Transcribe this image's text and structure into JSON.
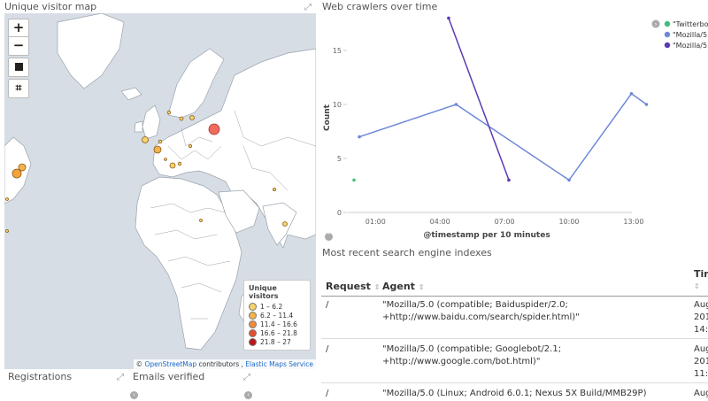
{
  "map_panel": {
    "title": "Unique visitor map",
    "zoom_in": "+",
    "zoom_out": "−",
    "legend": {
      "title": "Unique visitors",
      "items": [
        {
          "label": "1 – 6.2",
          "color": "#f7d26a"
        },
        {
          "label": "6.2 – 11.4",
          "color": "#f4b24b"
        },
        {
          "label": "11.4 – 16.6",
          "color": "#ee8c3a"
        },
        {
          "label": "16.6 – 21.8",
          "color": "#e2502e"
        },
        {
          "label": "21.8 – 27",
          "color": "#b8171b"
        }
      ]
    },
    "attribution": {
      "prefix": "©",
      "osm": "OpenStreetMap",
      "middle": "contributors ,",
      "ems": "Elastic Maps Service"
    }
  },
  "registrations": {
    "title": "Registrations"
  },
  "emails_verified": {
    "title": "Emails verified"
  },
  "crawler_chart": {
    "title": "Web crawlers over time"
  },
  "chart_data": {
    "type": "line",
    "xlabel": "@timestamp per 10 minutes",
    "ylabel": "Count",
    "x_ticks": [
      "01:00",
      "04:00",
      "07:00",
      "10:00",
      "13:00"
    ],
    "y_ticks": [
      "0",
      "5",
      "10",
      "15"
    ],
    "ylim": [
      0,
      18
    ],
    "legend": [
      "\"Twitterbo",
      "\"Mozilla/5.",
      "\"Mozilla/5."
    ],
    "series": [
      {
        "name": "\"Twitterbo",
        "color": "#3ebf7c",
        "points": [
          [
            0.0,
            3
          ]
        ]
      },
      {
        "name": "\"Mozilla/5.",
        "color": "#6f87d8",
        "points": [
          [
            0.25,
            7
          ],
          [
            4.75,
            10
          ],
          [
            10.0,
            3
          ],
          [
            12.9,
            11
          ],
          [
            13.6,
            10
          ]
        ]
      },
      {
        "name": "\"Mozilla/5.",
        "color": "#5b3ab3",
        "points": [
          [
            4.4,
            18
          ],
          [
            7.2,
            3
          ]
        ]
      }
    ]
  },
  "table_panel": {
    "title": "Most recent search engine indexes",
    "headers": {
      "request": "Request",
      "agent": "Agent",
      "time": "Tim"
    },
    "rows": [
      {
        "request": "/",
        "agent1": "\"Mozilla/5.0 (compatible; Baiduspider/2.0;",
        "agent2": "+http://www.baidu.com/search/spider.html)\"",
        "t1": "Aug",
        "t2": "201",
        "t3": "14:"
      },
      {
        "request": "/",
        "agent1": "\"Mozilla/5.0 (compatible; Googlebot/2.1;",
        "agent2": "+http://www.google.com/bot.html)\"",
        "t1": "Aug",
        "t2": "201",
        "t3": "11:"
      },
      {
        "request": "/",
        "agent1": "\"Mozilla/5.0 (Linux; Android 6.0.1; Nexus 5X Build/MMB29P)",
        "agent2": "",
        "t1": "Aug",
        "t2": "",
        "t3": ""
      }
    ]
  }
}
